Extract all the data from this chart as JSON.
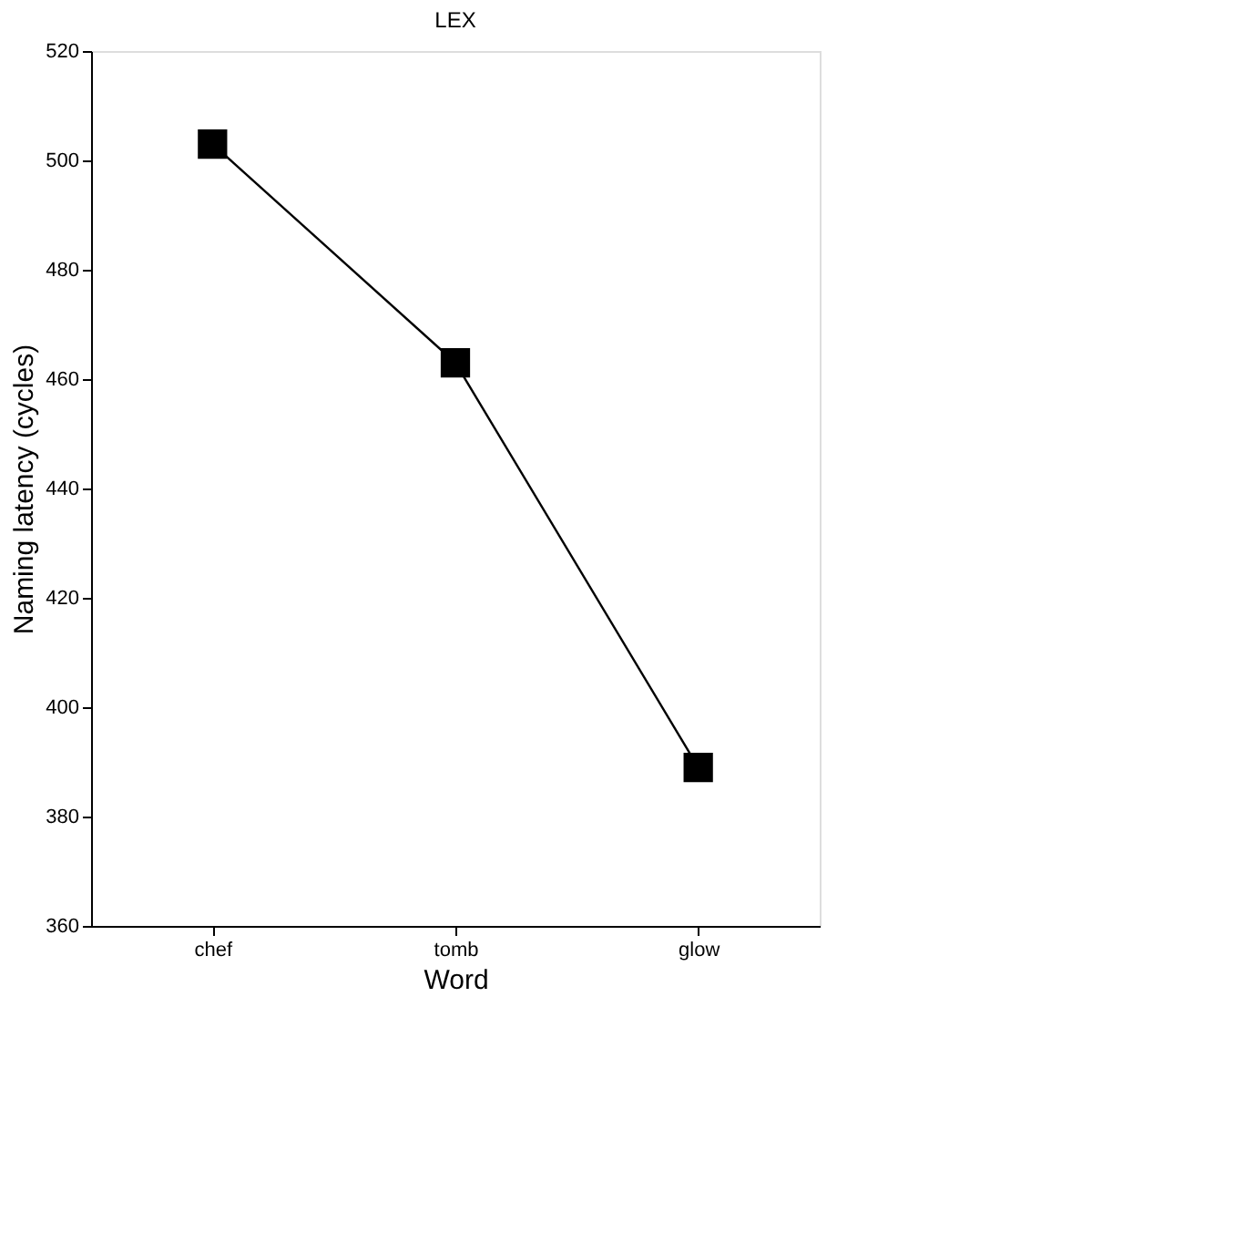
{
  "chart_data": {
    "type": "line",
    "title": "LEX",
    "xlabel": "Word",
    "ylabel": "Naming latency (cycles)",
    "categories": [
      "chef",
      "tomb",
      "glow"
    ],
    "series": [
      {
        "color": "#000000",
        "values": [
          503,
          463,
          389
        ]
      }
    ],
    "ylim": [
      360,
      520
    ],
    "yticks": [
      360,
      380,
      400,
      420,
      440,
      460,
      480,
      500,
      520
    ],
    "marker": "square",
    "line_style": "solid",
    "grid": false,
    "legend": false
  }
}
